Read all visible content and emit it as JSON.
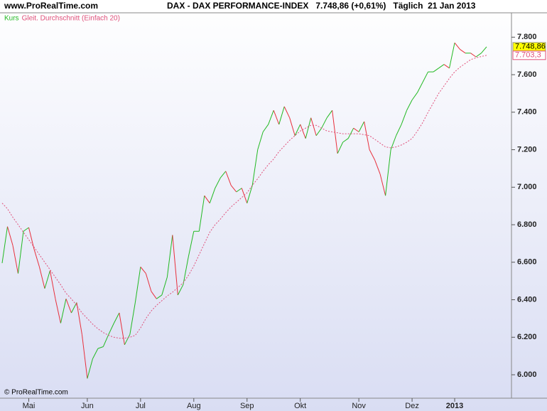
{
  "site": "www.ProRealTime.com",
  "header": "DAX - DAX PERFORMANCE-INDEX   7.748,86 (+0,61%)   Täglich  21 Jan 2013",
  "copyright": "© ProRealTime.com",
  "chart_data": {
    "type": "line",
    "categories": [
      null,
      null,
      null,
      null,
      null,
      "Mai",
      null,
      null,
      null,
      null,
      null,
      null,
      null,
      null,
      null,
      null,
      "Jun",
      null,
      null,
      null,
      null,
      null,
      null,
      null,
      null,
      null,
      "Jul",
      null,
      null,
      null,
      null,
      null,
      null,
      null,
      null,
      null,
      "Aug",
      null,
      null,
      null,
      null,
      null,
      null,
      null,
      null,
      null,
      "Sep",
      null,
      null,
      null,
      null,
      null,
      null,
      null,
      null,
      null,
      "Okt",
      null,
      null,
      null,
      null,
      null,
      null,
      null,
      null,
      null,
      null,
      "Nov",
      null,
      null,
      null,
      null,
      null,
      null,
      null,
      null,
      null,
      "Dez",
      null,
      null,
      null,
      null,
      null,
      null,
      null,
      "2013",
      null,
      null,
      null,
      null,
      null,
      null
    ],
    "series": [
      {
        "name": "Kurs",
        "color": "#22b922",
        "down_color": "#e8303c",
        "values": [
          6595,
          6790,
          6690,
          6540,
          6765,
          6785,
          6670,
          6575,
          6460,
          6555,
          6405,
          6275,
          6405,
          6330,
          6385,
          6215,
          5980,
          6085,
          6140,
          6150,
          6215,
          6275,
          6330,
          6160,
          6215,
          6385,
          6575,
          6540,
          6445,
          6405,
          6425,
          6520,
          6745,
          6425,
          6480,
          6630,
          6765,
          6765,
          6955,
          6915,
          6995,
          7050,
          7085,
          7010,
          6975,
          6995,
          6915,
          7010,
          7200,
          7295,
          7335,
          7410,
          7335,
          7430,
          7370,
          7275,
          7335,
          7260,
          7370,
          7275,
          7315,
          7370,
          7410,
          7180,
          7240,
          7260,
          7315,
          7295,
          7350,
          7200,
          7145,
          7070,
          6955,
          7200,
          7275,
          7335,
          7410,
          7465,
          7505,
          7560,
          7615,
          7615,
          7635,
          7655,
          7635,
          7770,
          7735,
          7715,
          7715,
          7695,
          7715,
          7748.86
        ],
        "value_labels": [
          null,
          null,
          null,
          null,
          null,
          null,
          null,
          null,
          null,
          null,
          null,
          null,
          null,
          null,
          null,
          null,
          null,
          null,
          null,
          null,
          null,
          null,
          null,
          null,
          null,
          null,
          null,
          null,
          null,
          null,
          null,
          null,
          null,
          null,
          null,
          null,
          null,
          null,
          null,
          null,
          null,
          null,
          null,
          null,
          null,
          null,
          null,
          null,
          null,
          null,
          null,
          null,
          null,
          null,
          null,
          null,
          null,
          null,
          null,
          null,
          null,
          null,
          null,
          null,
          null,
          null,
          null,
          null,
          null,
          null,
          null,
          null,
          null,
          null,
          null,
          null,
          null,
          null,
          null,
          null,
          null,
          null,
          null,
          null,
          null,
          null,
          null,
          null,
          null,
          null,
          null,
          "7.748,86"
        ]
      },
      {
        "name": "Gleit. Durchschnitt (Einfach 20)",
        "color": "#e0507a",
        "values": [
          6915,
          6885,
          6840,
          6800,
          6760,
          6720,
          6680,
          6640,
          6600,
          6560,
          6520,
          6480,
          6435,
          6405,
          6370,
          6330,
          6300,
          6270,
          6245,
          6225,
          6210,
          6200,
          6195,
          6195,
          6200,
          6210,
          6250,
          6300,
          6340,
          6370,
          6395,
          6420,
          6440,
          6465,
          6490,
          6530,
          6580,
          6640,
          6700,
          6760,
          6800,
          6830,
          6865,
          6895,
          6920,
          6945,
          6970,
          7010,
          7045,
          7085,
          7120,
          7150,
          7190,
          7220,
          7250,
          7275,
          7300,
          7315,
          7330,
          7330,
          7315,
          7300,
          7295,
          7290,
          7285,
          7285,
          7285,
          7285,
          7280,
          7275,
          7255,
          7235,
          7215,
          7210,
          7215,
          7225,
          7240,
          7260,
          7300,
          7345,
          7400,
          7450,
          7500,
          7540,
          7580,
          7615,
          7640,
          7660,
          7680,
          7690,
          7697,
          7703.3
        ],
        "value_labels": [
          null,
          null,
          null,
          null,
          null,
          null,
          null,
          null,
          null,
          null,
          null,
          null,
          null,
          null,
          null,
          null,
          null,
          null,
          null,
          null,
          null,
          null,
          null,
          null,
          null,
          null,
          null,
          null,
          null,
          null,
          null,
          null,
          null,
          null,
          null,
          null,
          null,
          null,
          null,
          null,
          null,
          null,
          null,
          null,
          null,
          null,
          null,
          null,
          null,
          null,
          null,
          null,
          null,
          null,
          null,
          null,
          null,
          null,
          null,
          null,
          null,
          null,
          null,
          null,
          null,
          null,
          null,
          null,
          null,
          null,
          null,
          null,
          null,
          null,
          null,
          null,
          null,
          null,
          null,
          null,
          null,
          null,
          null,
          null,
          null,
          null,
          null,
          null,
          null,
          null,
          null,
          "7.703,3"
        ]
      }
    ],
    "ylim": [
      5875,
      7930
    ],
    "yticks": [
      {
        "value": 6000,
        "label": "6.000"
      },
      {
        "value": 6200,
        "label": "6.200"
      },
      {
        "value": 6400,
        "label": "6.400"
      },
      {
        "value": 6600,
        "label": "6.600"
      },
      {
        "value": 6800,
        "label": "6.800"
      },
      {
        "value": 7000,
        "label": "7.000"
      },
      {
        "value": 7200,
        "label": "7.200"
      },
      {
        "value": 7400,
        "label": "7.400"
      },
      {
        "value": 7600,
        "label": "7.600"
      },
      {
        "value": 7800,
        "label": "7.800"
      }
    ],
    "grid": false
  }
}
